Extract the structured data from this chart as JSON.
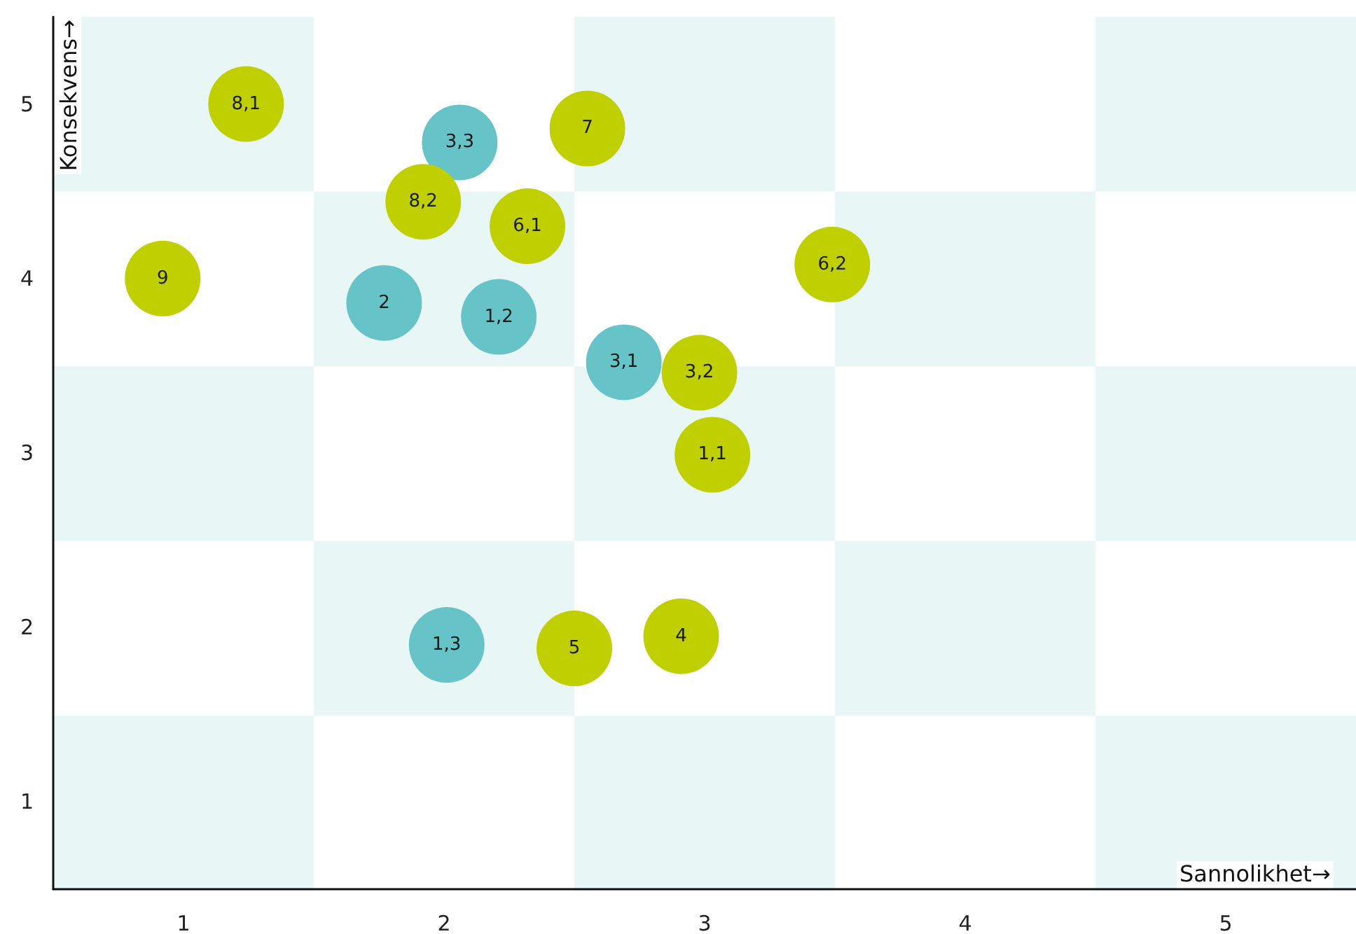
{
  "chart_data": {
    "type": "scatter",
    "xlabel": "Sannolikhet→",
    "ylabel": "Konsekvens→",
    "xlim": [
      0.5,
      5.5
    ],
    "ylim": [
      0.5,
      5.5
    ],
    "xticks": [
      1,
      2,
      3,
      4,
      5
    ],
    "yticks": [
      1,
      2,
      3,
      4,
      5
    ],
    "grid": false,
    "marker": "circle",
    "series": [
      {
        "name": "3,3",
        "color": "#66c3c8",
        "x": [
          2.06
        ],
        "values": [
          4.78
        ]
      },
      {
        "name": "2",
        "color": "#66c3c8",
        "x": [
          1.77
        ],
        "values": [
          3.86
        ]
      },
      {
        "name": "1,2",
        "color": "#66c3c8",
        "x": [
          2.21
        ],
        "values": [
          3.78
        ]
      },
      {
        "name": "3,1",
        "color": "#66c3c8",
        "x": [
          2.69
        ],
        "values": [
          3.52
        ]
      },
      {
        "name": "1,3",
        "color": "#66c3c8",
        "x": [
          2.01
        ],
        "values": [
          1.9
        ]
      },
      {
        "name": "8,1",
        "color": "#bfcf00",
        "x": [
          1.24
        ],
        "values": [
          5.0
        ]
      },
      {
        "name": "7",
        "color": "#bfcf00",
        "x": [
          2.55
        ],
        "values": [
          4.86
        ]
      },
      {
        "name": "8,2",
        "color": "#bfcf00",
        "x": [
          1.92
        ],
        "values": [
          4.44
        ]
      },
      {
        "name": "6,1",
        "color": "#bfcf00",
        "x": [
          2.32
        ],
        "values": [
          4.3
        ]
      },
      {
        "name": "9",
        "color": "#bfcf00",
        "x": [
          0.92
        ],
        "values": [
          4.0
        ]
      },
      {
        "name": "6,2",
        "color": "#bfcf00",
        "x": [
          3.49
        ],
        "values": [
          4.08
        ]
      },
      {
        "name": "3,2",
        "color": "#bfcf00",
        "x": [
          2.98
        ],
        "values": [
          3.46
        ]
      },
      {
        "name": "1,1",
        "color": "#bfcf00",
        "x": [
          3.03
        ],
        "values": [
          2.99
        ]
      },
      {
        "name": "5",
        "color": "#bfcf00",
        "x": [
          2.5
        ],
        "values": [
          1.88
        ]
      },
      {
        "name": "4",
        "color": "#bfcf00",
        "x": [
          2.91
        ],
        "values": [
          1.95
        ]
      }
    ]
  }
}
